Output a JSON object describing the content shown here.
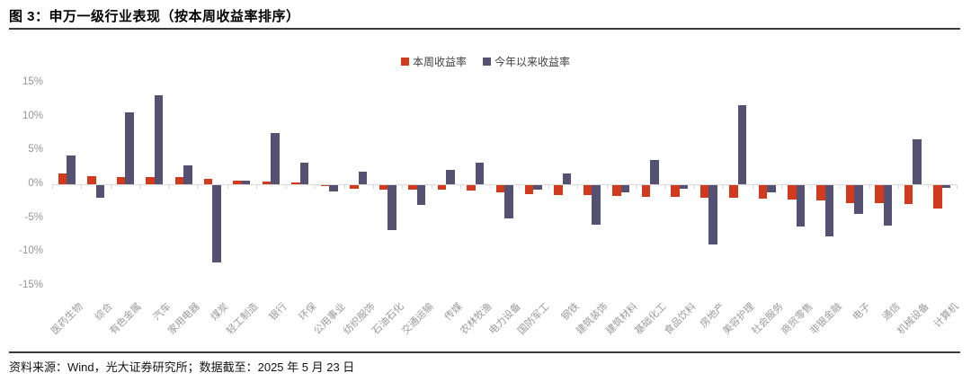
{
  "title": "图 3：申万一级行业表现（按本周收益率排序）",
  "footer": "资料来源：Wind，光大证券研究所；数据截至：2025 年 5 月 23 日",
  "colors": {
    "week_bar": "#d23a1e",
    "ytd_bar": "#555172",
    "axis": "#d9d9d9",
    "tick_text": "#959595"
  },
  "chart_data": {
    "type": "bar",
    "title": "申万一级行业表现（按本周收益率排序）",
    "xlabel": "",
    "ylabel": "",
    "ylim": [
      -15,
      15
    ],
    "grid": false,
    "legend_position": "top-center",
    "yticks": [
      15,
      10,
      5,
      0,
      -5,
      -10,
      -15
    ],
    "ytick_labels": [
      "15%",
      "10%",
      "5%",
      "0%",
      "-5%",
      "-10%",
      "-15%"
    ],
    "categories": [
      "医药生物",
      "综合",
      "有色金属",
      "汽车",
      "家用电器",
      "煤炭",
      "轻工制造",
      "银行",
      "环保",
      "公用事业",
      "纺织服饰",
      "石油石化",
      "交通运输",
      "传媒",
      "农林牧渔",
      "电力设备",
      "国防军工",
      "钢铁",
      "建筑装饰",
      "建筑材料",
      "基础化工",
      "食品饮料",
      "房地产",
      "美容护理",
      "社会服务",
      "商贸零售",
      "非银金融",
      "电子",
      "通信",
      "机械设备",
      "计算机"
    ],
    "series": [
      {
        "name": "本周收益率",
        "color_key": "week_bar",
        "values": [
          1.6,
          1.2,
          1.1,
          1.1,
          1.0,
          0.8,
          0.5,
          0.4,
          0.3,
          -0.1,
          -0.5,
          -0.6,
          -0.6,
          -0.7,
          -0.8,
          -1.1,
          -1.3,
          -1.4,
          -1.5,
          -1.6,
          -1.7,
          -1.7,
          -1.8,
          -1.9,
          -2.0,
          -2.1,
          -2.2,
          -2.6,
          -2.7,
          -2.8,
          -3.4
        ]
      },
      {
        "name": "今年以来收益率",
        "color_key": "ytd_bar",
        "values": [
          4.2,
          -1.8,
          10.7,
          13.2,
          2.8,
          -11.4,
          0.5,
          7.6,
          3.2,
          -0.9,
          1.8,
          -6.7,
          -2.9,
          2.1,
          3.2,
          -4.9,
          -0.7,
          1.6,
          -5.8,
          -1.1,
          3.6,
          -0.5,
          -8.8,
          11.7,
          -1.0,
          -6.1,
          -7.6,
          -4.3,
          -6.0,
          6.6,
          -0.4
        ]
      }
    ]
  }
}
